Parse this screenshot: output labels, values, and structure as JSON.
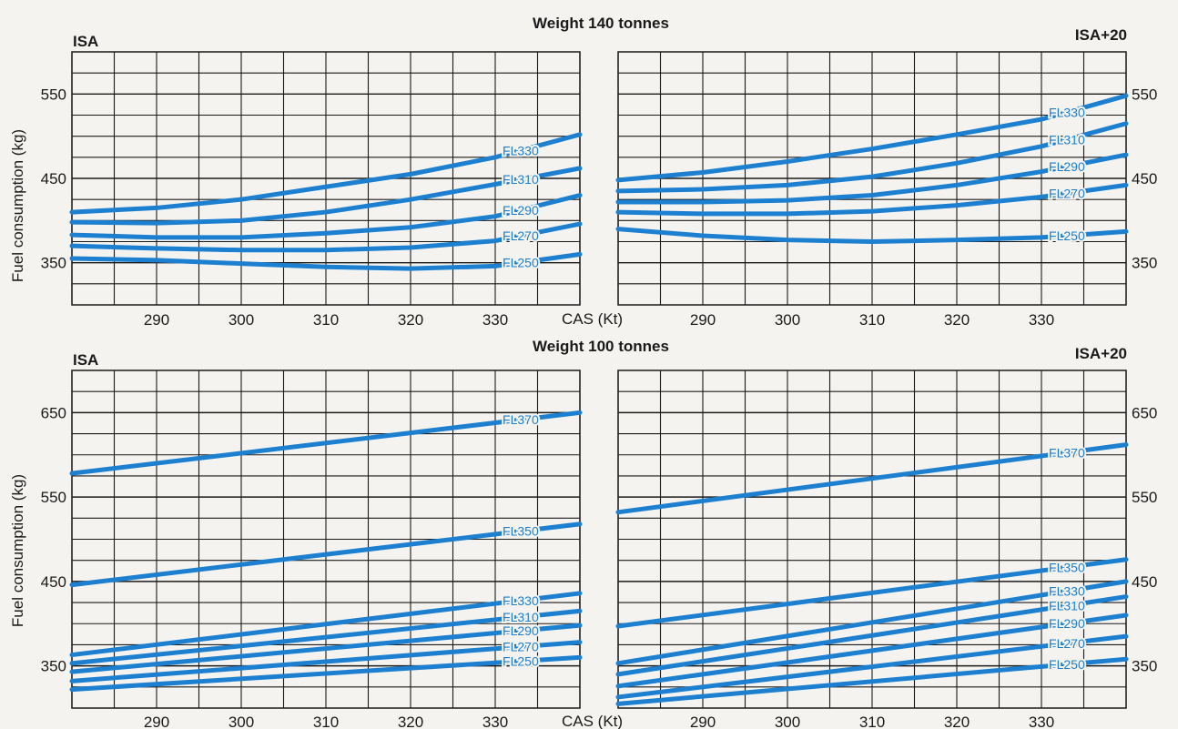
{
  "figure": {
    "titles": [
      "Weight 140 tonnes",
      "Weight 100 tonnes"
    ],
    "ylabel": "Fuel consumption (kg)",
    "xlabel": "CAS (Kt)",
    "series_color": "#1d7fd0"
  },
  "chart_data": [
    {
      "type": "line",
      "panel": "top-left",
      "title": "Weight 140 tonnes",
      "condition": "ISA",
      "xlabel": "CAS (Kt)",
      "ylabel": "Fuel consumption (kg)",
      "xlim": [
        280,
        340
      ],
      "ylim": [
        300,
        600
      ],
      "xticks": [
        290,
        300,
        310,
        320,
        330
      ],
      "yticks": [
        350,
        450,
        550
      ],
      "grid": true,
      "series": [
        {
          "name": "FL330",
          "x": [
            280,
            290,
            300,
            310,
            320,
            330,
            340
          ],
          "y": [
            410,
            415,
            425,
            440,
            455,
            475,
            502
          ]
        },
        {
          "name": "FL310",
          "x": [
            280,
            290,
            300,
            310,
            320,
            330,
            340
          ],
          "y": [
            398,
            397,
            400,
            410,
            425,
            443,
            462
          ]
        },
        {
          "name": "FL290",
          "x": [
            280,
            290,
            300,
            310,
            320,
            330,
            340
          ],
          "y": [
            383,
            380,
            380,
            385,
            392,
            405,
            430
          ]
        },
        {
          "name": "FL270",
          "x": [
            280,
            290,
            300,
            310,
            320,
            330,
            340
          ],
          "y": [
            370,
            367,
            365,
            365,
            368,
            376,
            396
          ]
        },
        {
          "name": "FL250",
          "x": [
            280,
            290,
            300,
            310,
            320,
            330,
            340
          ],
          "y": [
            355,
            353,
            349,
            345,
            343,
            346,
            360
          ]
        }
      ]
    },
    {
      "type": "line",
      "panel": "top-right",
      "condition": "ISA+20",
      "xlim": [
        280,
        340
      ],
      "ylim": [
        300,
        600
      ],
      "xticks": [
        290,
        300,
        310,
        320,
        330
      ],
      "yticks": [
        350,
        450,
        550
      ],
      "grid": true,
      "series": [
        {
          "name": "FL330",
          "x": [
            280,
            290,
            300,
            310,
            320,
            330,
            340
          ],
          "y": [
            448,
            457,
            470,
            485,
            502,
            520,
            548
          ]
        },
        {
          "name": "FL310",
          "x": [
            280,
            290,
            300,
            310,
            320,
            330,
            340
          ],
          "y": [
            435,
            437,
            442,
            452,
            468,
            488,
            515
          ]
        },
        {
          "name": "FL290",
          "x": [
            280,
            290,
            300,
            310,
            320,
            330,
            340
          ],
          "y": [
            422,
            422,
            424,
            430,
            442,
            458,
            478
          ]
        },
        {
          "name": "FL270",
          "x": [
            280,
            290,
            300,
            310,
            320,
            330,
            340
          ],
          "y": [
            410,
            408,
            408,
            411,
            418,
            428,
            442
          ]
        },
        {
          "name": "FL250",
          "x": [
            280,
            290,
            300,
            310,
            320,
            330,
            340
          ],
          "y": [
            390,
            382,
            377,
            375,
            377,
            380,
            387
          ]
        }
      ]
    },
    {
      "type": "line",
      "panel": "bottom-left",
      "title": "Weight 100 tonnes",
      "condition": "ISA",
      "xlabel": "CAS (Kt)",
      "ylabel": "Fuel consumption (kg)",
      "xlim": [
        280,
        340
      ],
      "ylim": [
        300,
        700
      ],
      "xticks": [
        290,
        300,
        310,
        320,
        330
      ],
      "yticks": [
        350,
        450,
        550,
        650
      ],
      "grid": true,
      "series": [
        {
          "name": "FL370",
          "x": [
            280,
            340
          ],
          "y": [
            578,
            650
          ]
        },
        {
          "name": "FL350",
          "x": [
            280,
            340
          ],
          "y": [
            446,
            518
          ]
        },
        {
          "name": "FL330",
          "x": [
            280,
            340
          ],
          "y": [
            363,
            436
          ]
        },
        {
          "name": "FL310",
          "x": [
            280,
            340
          ],
          "y": [
            353,
            415
          ]
        },
        {
          "name": "FL290",
          "x": [
            280,
            340
          ],
          "y": [
            343,
            398
          ]
        },
        {
          "name": "FL270",
          "x": [
            280,
            340
          ],
          "y": [
            332,
            378
          ]
        },
        {
          "name": "FL250",
          "x": [
            280,
            340
          ],
          "y": [
            322,
            360
          ]
        }
      ]
    },
    {
      "type": "line",
      "panel": "bottom-right",
      "condition": "ISA+20",
      "xlim": [
        280,
        340
      ],
      "ylim": [
        300,
        700
      ],
      "xticks": [
        290,
        300,
        310,
        320,
        330
      ],
      "yticks": [
        350,
        450,
        550,
        650
      ],
      "grid": true,
      "series": [
        {
          "name": "FL370",
          "x": [
            280,
            340
          ],
          "y": [
            532,
            612
          ]
        },
        {
          "name": "FL350",
          "x": [
            280,
            340
          ],
          "y": [
            397,
            476
          ]
        },
        {
          "name": "FL330",
          "x": [
            280,
            340
          ],
          "y": [
            353,
            450
          ]
        },
        {
          "name": "FL310",
          "x": [
            280,
            340
          ],
          "y": [
            340,
            432
          ]
        },
        {
          "name": "FL290",
          "x": [
            280,
            340
          ],
          "y": [
            326,
            410
          ]
        },
        {
          "name": "FL270",
          "x": [
            280,
            340
          ],
          "y": [
            313,
            385
          ]
        },
        {
          "name": "FL250",
          "x": [
            280,
            340
          ],
          "y": [
            305,
            358
          ]
        }
      ]
    }
  ]
}
